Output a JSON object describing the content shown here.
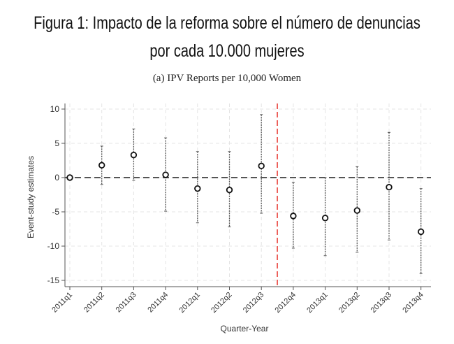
{
  "figure": {
    "title_line1": "Figura 1: Impacto de la reforma sobre el número de denuncias",
    "title_line2": "por cada 10.000 mujeres"
  },
  "chart_data": {
    "type": "scatter",
    "title": "(a) IPV Reports per 10,000 Women",
    "xlabel": "Quarter-Year",
    "ylabel": "Event-study estimates",
    "ylim": [
      -15,
      10
    ],
    "yticks": [
      10,
      5,
      0,
      -5,
      -10,
      -15
    ],
    "grid": true,
    "categories": [
      "2011q1",
      "2011q2",
      "2011q3",
      "2011q4",
      "2012q1",
      "2012q2",
      "2012q3",
      "2012q4",
      "2013q1",
      "2013q2",
      "2013q3",
      "2013q4"
    ],
    "estimates": [
      0,
      1.8,
      3.3,
      0.4,
      -1.6,
      -1.8,
      1.7,
      -5.6,
      -5.9,
      -4.8,
      -1.4,
      -7.9
    ],
    "ci_lower": [
      0,
      -1.0,
      -0.4,
      -4.9,
      -6.6,
      -7.2,
      -5.2,
      -10.3,
      -11.4,
      -10.9,
      -9.1,
      -14.0
    ],
    "ci_upper": [
      0,
      4.6,
      7.1,
      5.8,
      3.8,
      3.8,
      9.2,
      -0.7,
      0.0,
      1.6,
      6.6,
      -1.6
    ],
    "reference_line_y": 0,
    "reform_line_after_index": 6,
    "colors": {
      "reform_line": "#e8403a",
      "points": "#111111",
      "ci": "#555555",
      "zero_line": "#555555",
      "grid": "#e4e4e4"
    }
  }
}
